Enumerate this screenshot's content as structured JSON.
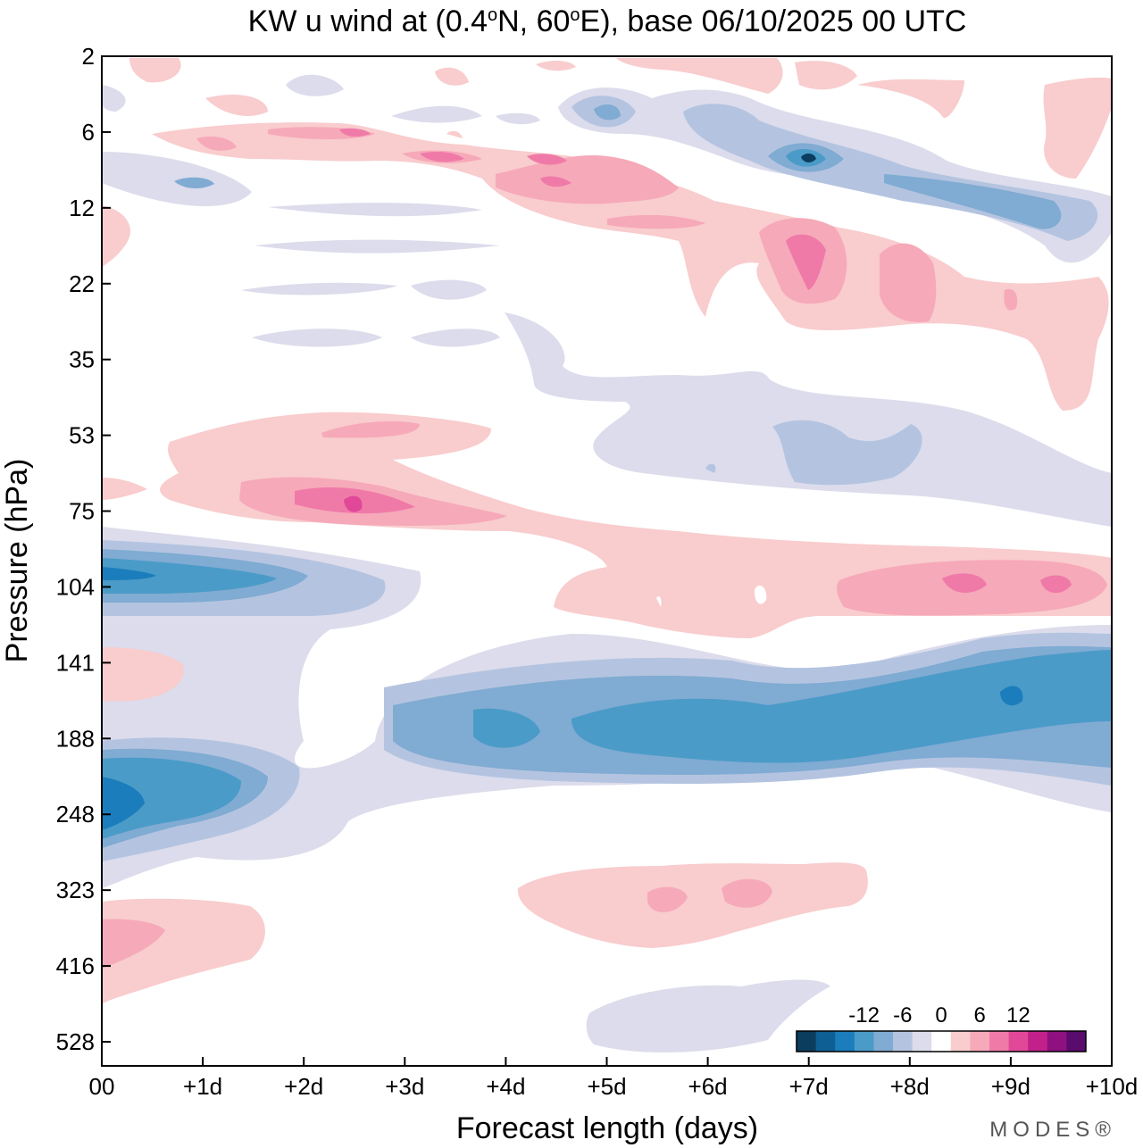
{
  "chart_data": {
    "type": "contour",
    "title": "KW u wind at (0.4°N, 60°E),  base 06/10/2025  00 UTC",
    "title_parts": {
      "lead": "KW u wind at (0.4",
      "deg1": "o",
      "mid": "N, 60",
      "deg2": "o",
      "tail": "E),  base 06/10/2025  00 UTC"
    },
    "xlabel": "Forecast length (days)",
    "ylabel": "Pressure (hPa)",
    "x_range": [
      0,
      10
    ],
    "x_ticks": [
      {
        "v": 0,
        "label": "00"
      },
      {
        "v": 1,
        "label": "+1d"
      },
      {
        "v": 2,
        "label": "+2d"
      },
      {
        "v": 3,
        "label": "+3d"
      },
      {
        "v": 4,
        "label": "+4d"
      },
      {
        "v": 5,
        "label": "+5d"
      },
      {
        "v": 6,
        "label": "+6d"
      },
      {
        "v": 7,
        "label": "+7d"
      },
      {
        "v": 8,
        "label": "+8d"
      },
      {
        "v": 9,
        "label": "+9d"
      },
      {
        "v": 10,
        "label": "+10d"
      }
    ],
    "y_scale": "log",
    "y_ticks": [
      2,
      6,
      12,
      22,
      35,
      53,
      75,
      104,
      141,
      188,
      248,
      323,
      416,
      528
    ],
    "y_tick_labels": [
      "2",
      "6",
      "12",
      "22",
      "35",
      "53",
      "75",
      "104",
      "141",
      "188",
      "248",
      "323",
      "416",
      "528"
    ],
    "levels": [
      -15,
      -13.5,
      -12,
      -10.5,
      -9,
      -7.5,
      -6,
      -4.5,
      -3,
      -1.5,
      1.5,
      3,
      4.5,
      6,
      7.5,
      9,
      10.5,
      12,
      13.5,
      15
    ],
    "colorbar": {
      "labels": [
        "-12",
        "-6",
        "0",
        "6",
        "12"
      ],
      "label_values": [
        -12,
        -6,
        0,
        6,
        12
      ],
      "colors": [
        "#0b3d5e",
        "#0e5f94",
        "#1b7dbb",
        "#4a9bc8",
        "#80abd2",
        "#b4c4e0",
        "#dcdcec",
        "#ffffff",
        "#f9cccd",
        "#f6a9b9",
        "#ef7aa8",
        "#e14898",
        "#c2208a",
        "#8e117f",
        "#5a0b6e"
      ]
    },
    "features": [
      {
        "name": "tropopause easterly jet",
        "x": [
          3,
          10
        ],
        "p": [
          141,
          250
        ],
        "u_min": -12
      },
      {
        "name": "lower stratosphere easterly",
        "x": [
          0,
          3
        ],
        "p": [
          90,
          120
        ],
        "u_min": -10.5
      },
      {
        "name": "upper troposphere easterly",
        "x": [
          0,
          2
        ],
        "p": [
          200,
          300
        ],
        "u_min": -12
      },
      {
        "name": "stratospheric westerly band",
        "x": [
          1.5,
          10
        ],
        "p": [
          60,
          130
        ],
        "u_max": 9
      },
      {
        "name": "upper stratospheric easterly",
        "x": [
          6.5,
          7.5
        ],
        "p": [
          5,
          10
        ],
        "u_min": -13.5
      }
    ],
    "branding": "MODES®"
  }
}
